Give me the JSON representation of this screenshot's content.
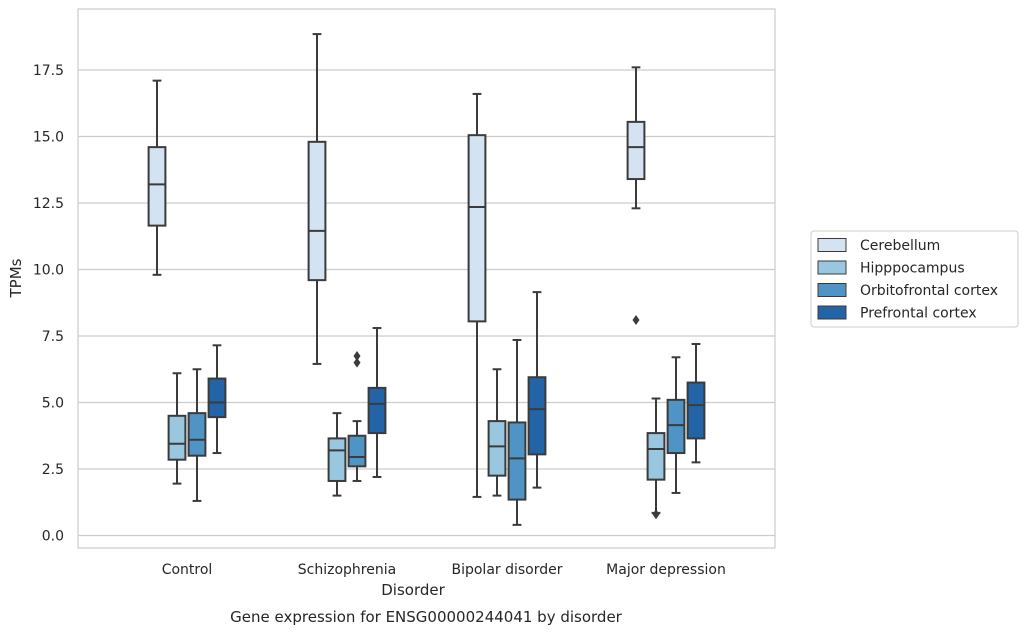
{
  "chart_data": {
    "type": "box",
    "title": "",
    "caption": "Gene expression for ENSG00000244041 by disorder",
    "xlabel": "Disorder",
    "ylabel": "TPMs",
    "ylim": [
      -0.45,
      19.9
    ],
    "yticks": [
      "0.0",
      "2.5",
      "5.0",
      "7.5",
      "10.0",
      "12.5",
      "15.0",
      "17.5"
    ],
    "grid": "horizontal",
    "legend_position": "right",
    "categories": [
      "Control",
      "Schizophrenia",
      "Bipolar disorder",
      "Major depression"
    ],
    "series": [
      {
        "name": "Cerebellum",
        "color": "#d4e3f2",
        "boxes": [
          {
            "min": 9.8,
            "q1": 11.65,
            "median": 13.2,
            "q3": 14.6,
            "max": 17.1,
            "outliers": []
          },
          {
            "min": 6.45,
            "q1": 9.6,
            "median": 11.45,
            "q3": 14.8,
            "max": 18.85,
            "outliers": []
          },
          {
            "min": 1.45,
            "q1": 8.05,
            "median": 12.35,
            "q3": 15.05,
            "max": 16.6,
            "outliers": []
          },
          {
            "min": 12.3,
            "q1": 13.4,
            "median": 14.6,
            "q3": 15.55,
            "max": 17.6,
            "outliers": [
              8.1
            ]
          }
        ]
      },
      {
        "name": "Hipppocampus",
        "color": "#9ac7e0",
        "boxes": [
          {
            "min": 1.95,
            "q1": 2.85,
            "median": 3.45,
            "q3": 4.5,
            "max": 6.1,
            "outliers": []
          },
          {
            "min": 1.5,
            "q1": 2.05,
            "median": 3.2,
            "q3": 3.65,
            "max": 4.6,
            "outliers": []
          },
          {
            "min": 1.5,
            "q1": 2.25,
            "median": 3.35,
            "q3": 4.3,
            "max": 6.25,
            "outliers": []
          },
          {
            "min": 0.85,
            "q1": 2.1,
            "median": 3.25,
            "q3": 3.85,
            "max": 5.15,
            "outliers": [
              0.8
            ]
          }
        ]
      },
      {
        "name": "Orbitofrontal cortex",
        "color": "#4f94c5",
        "boxes": [
          {
            "min": 1.3,
            "q1": 3.0,
            "median": 3.6,
            "q3": 4.6,
            "max": 6.25,
            "outliers": []
          },
          {
            "min": 2.05,
            "q1": 2.6,
            "median": 2.95,
            "q3": 3.75,
            "max": 4.3,
            "outliers": [
              6.5,
              6.75
            ]
          },
          {
            "min": 0.4,
            "q1": 1.35,
            "median": 2.9,
            "q3": 4.25,
            "max": 7.35,
            "outliers": []
          },
          {
            "min": 1.6,
            "q1": 3.1,
            "median": 4.15,
            "q3": 5.1,
            "max": 6.7,
            "outliers": []
          }
        ]
      },
      {
        "name": "Prefrontal cortex",
        "color": "#2264a6",
        "boxes": [
          {
            "min": 3.1,
            "q1": 4.45,
            "median": 5.0,
            "q3": 5.9,
            "max": 7.15,
            "outliers": []
          },
          {
            "min": 2.2,
            "q1": 3.85,
            "median": 4.95,
            "q3": 5.55,
            "max": 7.8,
            "outliers": []
          },
          {
            "min": 1.8,
            "q1": 3.05,
            "median": 4.75,
            "q3": 5.95,
            "max": 9.15,
            "outliers": []
          },
          {
            "min": 2.75,
            "q1": 3.65,
            "median": 4.9,
            "q3": 5.75,
            "max": 7.2,
            "outliers": []
          }
        ]
      }
    ]
  }
}
